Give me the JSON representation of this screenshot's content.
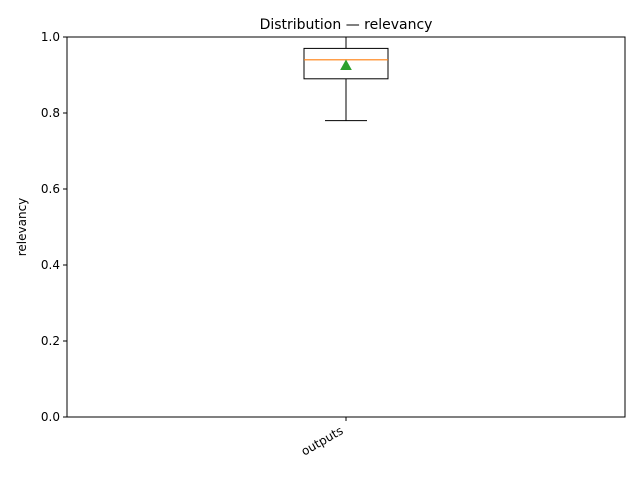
{
  "chart_data": {
    "type": "box",
    "title": "Distribution — relevancy",
    "xlabel": "",
    "ylabel": "relevancy",
    "categories": [
      "outputs"
    ],
    "series": [
      {
        "category": "outputs",
        "whisker_low": 0.78,
        "q1": 0.89,
        "median": 0.94,
        "q3": 0.97,
        "whisker_high": 1.0,
        "mean": 0.925
      }
    ],
    "ylim": [
      0.0,
      1.0
    ],
    "yticks": [
      "0.0",
      "0.2",
      "0.4",
      "0.6",
      "0.8",
      "1.0"
    ],
    "grid": false,
    "colors": {
      "box": "#000000",
      "median": "#ff7f0e",
      "mean": "#2ca02c"
    }
  }
}
